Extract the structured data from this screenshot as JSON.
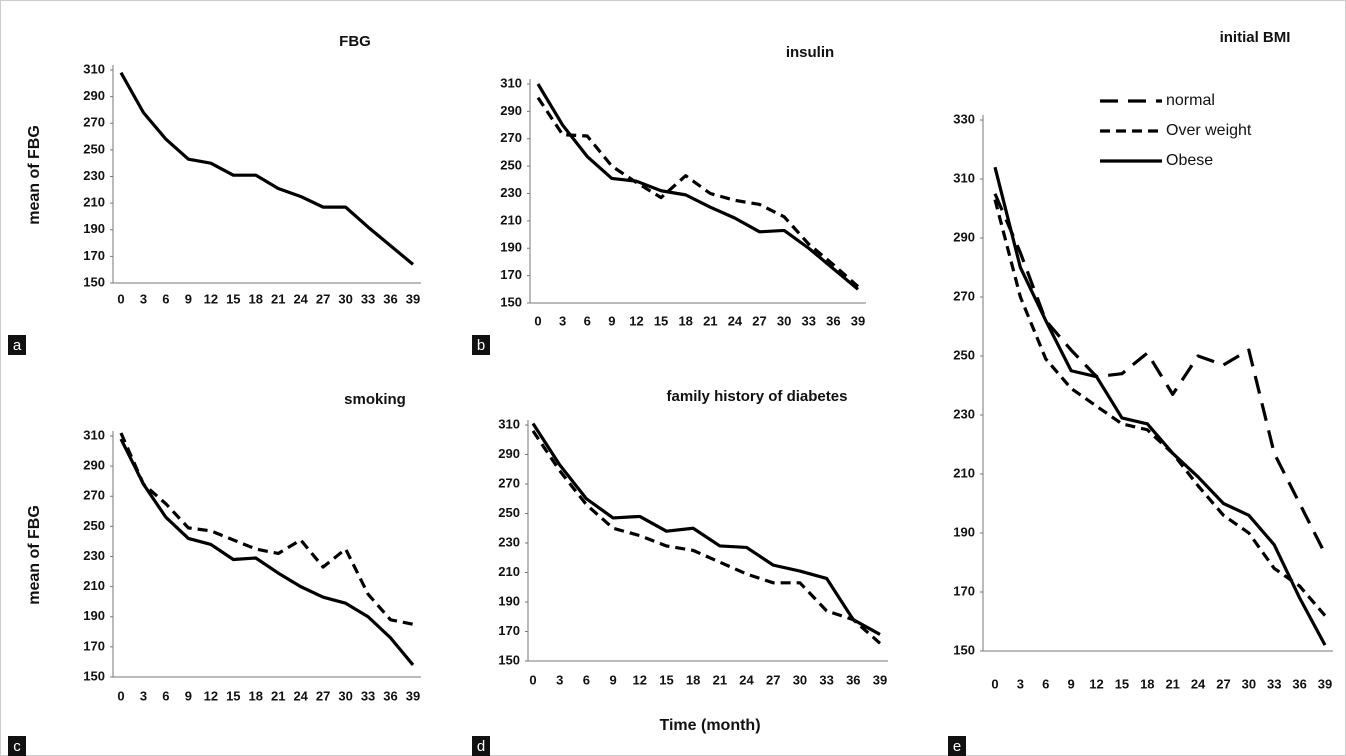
{
  "chart_data": [
    {
      "type": "line",
      "title": "FBG",
      "panel_label": "a",
      "y_label": "mean of FBG",
      "categories": [
        "0",
        "3",
        "6",
        "9",
        "12",
        "15",
        "18",
        "21",
        "24",
        "27",
        "30",
        "33",
        "36",
        "39"
      ],
      "values": [
        308,
        278,
        258,
        243,
        240,
        231,
        231,
        221,
        215,
        207,
        207,
        192,
        178,
        164
      ],
      "color": "#000000",
      "ylim": [
        150,
        310
      ],
      "yticks": [
        150,
        170,
        190,
        210,
        230,
        250,
        270,
        290,
        310
      ],
      "grid": false
    },
    {
      "type": "line",
      "title": "insulin",
      "panel_label": "b",
      "categories": [
        "0",
        "3",
        "6",
        "9",
        "12",
        "15",
        "18",
        "21",
        "24",
        "27",
        "30",
        "33",
        "36",
        "39"
      ],
      "series": [
        {
          "color": "#000000",
          "dash": "solid",
          "values": [
            310,
            280,
            257,
            241,
            239,
            232,
            229,
            220,
            212,
            202,
            203,
            190,
            175,
            160
          ]
        },
        {
          "color": "#000000",
          "dash": "dashed",
          "values": [
            300,
            273,
            272,
            250,
            238,
            227,
            243,
            230,
            225,
            222,
            213,
            193,
            178,
            162
          ]
        }
      ],
      "ylim": [
        150,
        310
      ],
      "yticks": [
        150,
        170,
        190,
        210,
        230,
        250,
        270,
        290,
        310
      ],
      "grid": false
    },
    {
      "type": "line",
      "title": "smoking",
      "panel_label": "c",
      "y_label": "mean of FBG",
      "categories": [
        "0",
        "3",
        "6",
        "9",
        "12",
        "15",
        "18",
        "21",
        "24",
        "27",
        "30",
        "33",
        "36",
        "39"
      ],
      "series": [
        {
          "color": "#000000",
          "dash": "solid",
          "values": [
            308,
            278,
            256,
            242,
            238,
            228,
            229,
            219,
            210,
            203,
            199,
            190,
            176,
            158
          ]
        },
        {
          "color": "#000000",
          "dash": "dashed",
          "values": [
            312,
            278,
            265,
            249,
            247,
            241,
            235,
            232,
            241,
            223,
            235,
            205,
            188,
            185
          ]
        }
      ],
      "ylim": [
        150,
        310
      ],
      "yticks": [
        150,
        170,
        190,
        210,
        230,
        250,
        270,
        290,
        310
      ],
      "grid": false
    },
    {
      "type": "line",
      "title": "family history of diabetes",
      "panel_label": "d",
      "x_label": "Time (month)",
      "categories": [
        "0",
        "3",
        "6",
        "9",
        "12",
        "15",
        "18",
        "21",
        "24",
        "27",
        "30",
        "33",
        "36",
        "39"
      ],
      "series": [
        {
          "color": "#000000",
          "dash": "solid",
          "values": [
            311,
            283,
            260,
            247,
            248,
            238,
            240,
            228,
            227,
            215,
            211,
            206,
            178,
            168
          ]
        },
        {
          "color": "#000000",
          "dash": "dashed",
          "values": [
            306,
            279,
            256,
            240,
            235,
            228,
            225,
            217,
            209,
            203,
            203,
            184,
            178,
            162
          ]
        }
      ],
      "ylim": [
        150,
        310
      ],
      "yticks": [
        150,
        170,
        190,
        210,
        230,
        250,
        270,
        290,
        310
      ],
      "grid": false
    },
    {
      "type": "line",
      "title": "initial BMI",
      "panel_label": "e",
      "legend": "top-right",
      "categories": [
        "0",
        "3",
        "6",
        "9",
        "12",
        "15",
        "18",
        "21",
        "24",
        "27",
        "30",
        "33",
        "36",
        "39"
      ],
      "series": [
        {
          "name": "normal",
          "color": "#000000",
          "dash": "long-dashed",
          "values": [
            305,
            285,
            262,
            252,
            243,
            244,
            251,
            237,
            250,
            247,
            252,
            217,
            200,
            183
          ]
        },
        {
          "name": "Over weight",
          "color": "#000000",
          "dash": "dashed",
          "values": [
            303,
            270,
            249,
            239,
            233,
            227,
            225,
            217,
            206,
            196,
            190,
            178,
            172,
            162
          ]
        },
        {
          "name": "Obese",
          "color": "#000000",
          "dash": "solid",
          "values": [
            314,
            280,
            262,
            245,
            243,
            229,
            227,
            217,
            209,
            200,
            196,
            186,
            168,
            152
          ]
        }
      ],
      "ylim": [
        150,
        330
      ],
      "yticks": [
        150,
        170,
        190,
        210,
        230,
        250,
        270,
        290,
        310,
        330
      ],
      "grid": false
    }
  ]
}
